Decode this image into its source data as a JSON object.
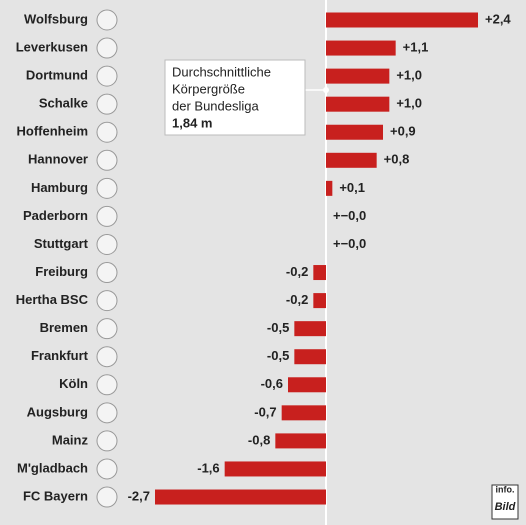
{
  "chart_data": {
    "type": "bar",
    "orientation": "horizontal",
    "categories": [
      "Wolfsburg",
      "Leverkusen",
      "Dortmund",
      "Schalke",
      "Hoffenheim",
      "Hannover",
      "Hamburg",
      "Paderborn",
      "Stuttgart",
      "Freiburg",
      "Hertha BSC",
      "Bremen",
      "Frankfurt",
      "Köln",
      "Augsburg",
      "Mainz",
      "M'gladbach",
      "FC Bayern"
    ],
    "values": [
      2.4,
      1.1,
      1.0,
      1.0,
      0.9,
      0.8,
      0.1,
      0,
      0,
      -0.2,
      -0.2,
      -0.5,
      -0.5,
      -0.6,
      -0.7,
      -0.8,
      -1.6,
      -2.7
    ],
    "value_labels": [
      "+2,4",
      "+1,1",
      "+1,0",
      "+1,0",
      "+0,9",
      "+0,8",
      "+0,1",
      "+−0,0",
      "+−0,0",
      "-0,2",
      "-0,2",
      "-0,5",
      "-0,5",
      "-0,6",
      "-0,7",
      "-0,8",
      "-1,6",
      "-2,7"
    ],
    "color": "#c8201e",
    "annotation": {
      "lines": [
        "Durchschnittliche",
        "Körpergröße",
        "der Bundesliga"
      ],
      "value": "1,84 m"
    },
    "branding": [
      "info.",
      "Bild"
    ]
  }
}
